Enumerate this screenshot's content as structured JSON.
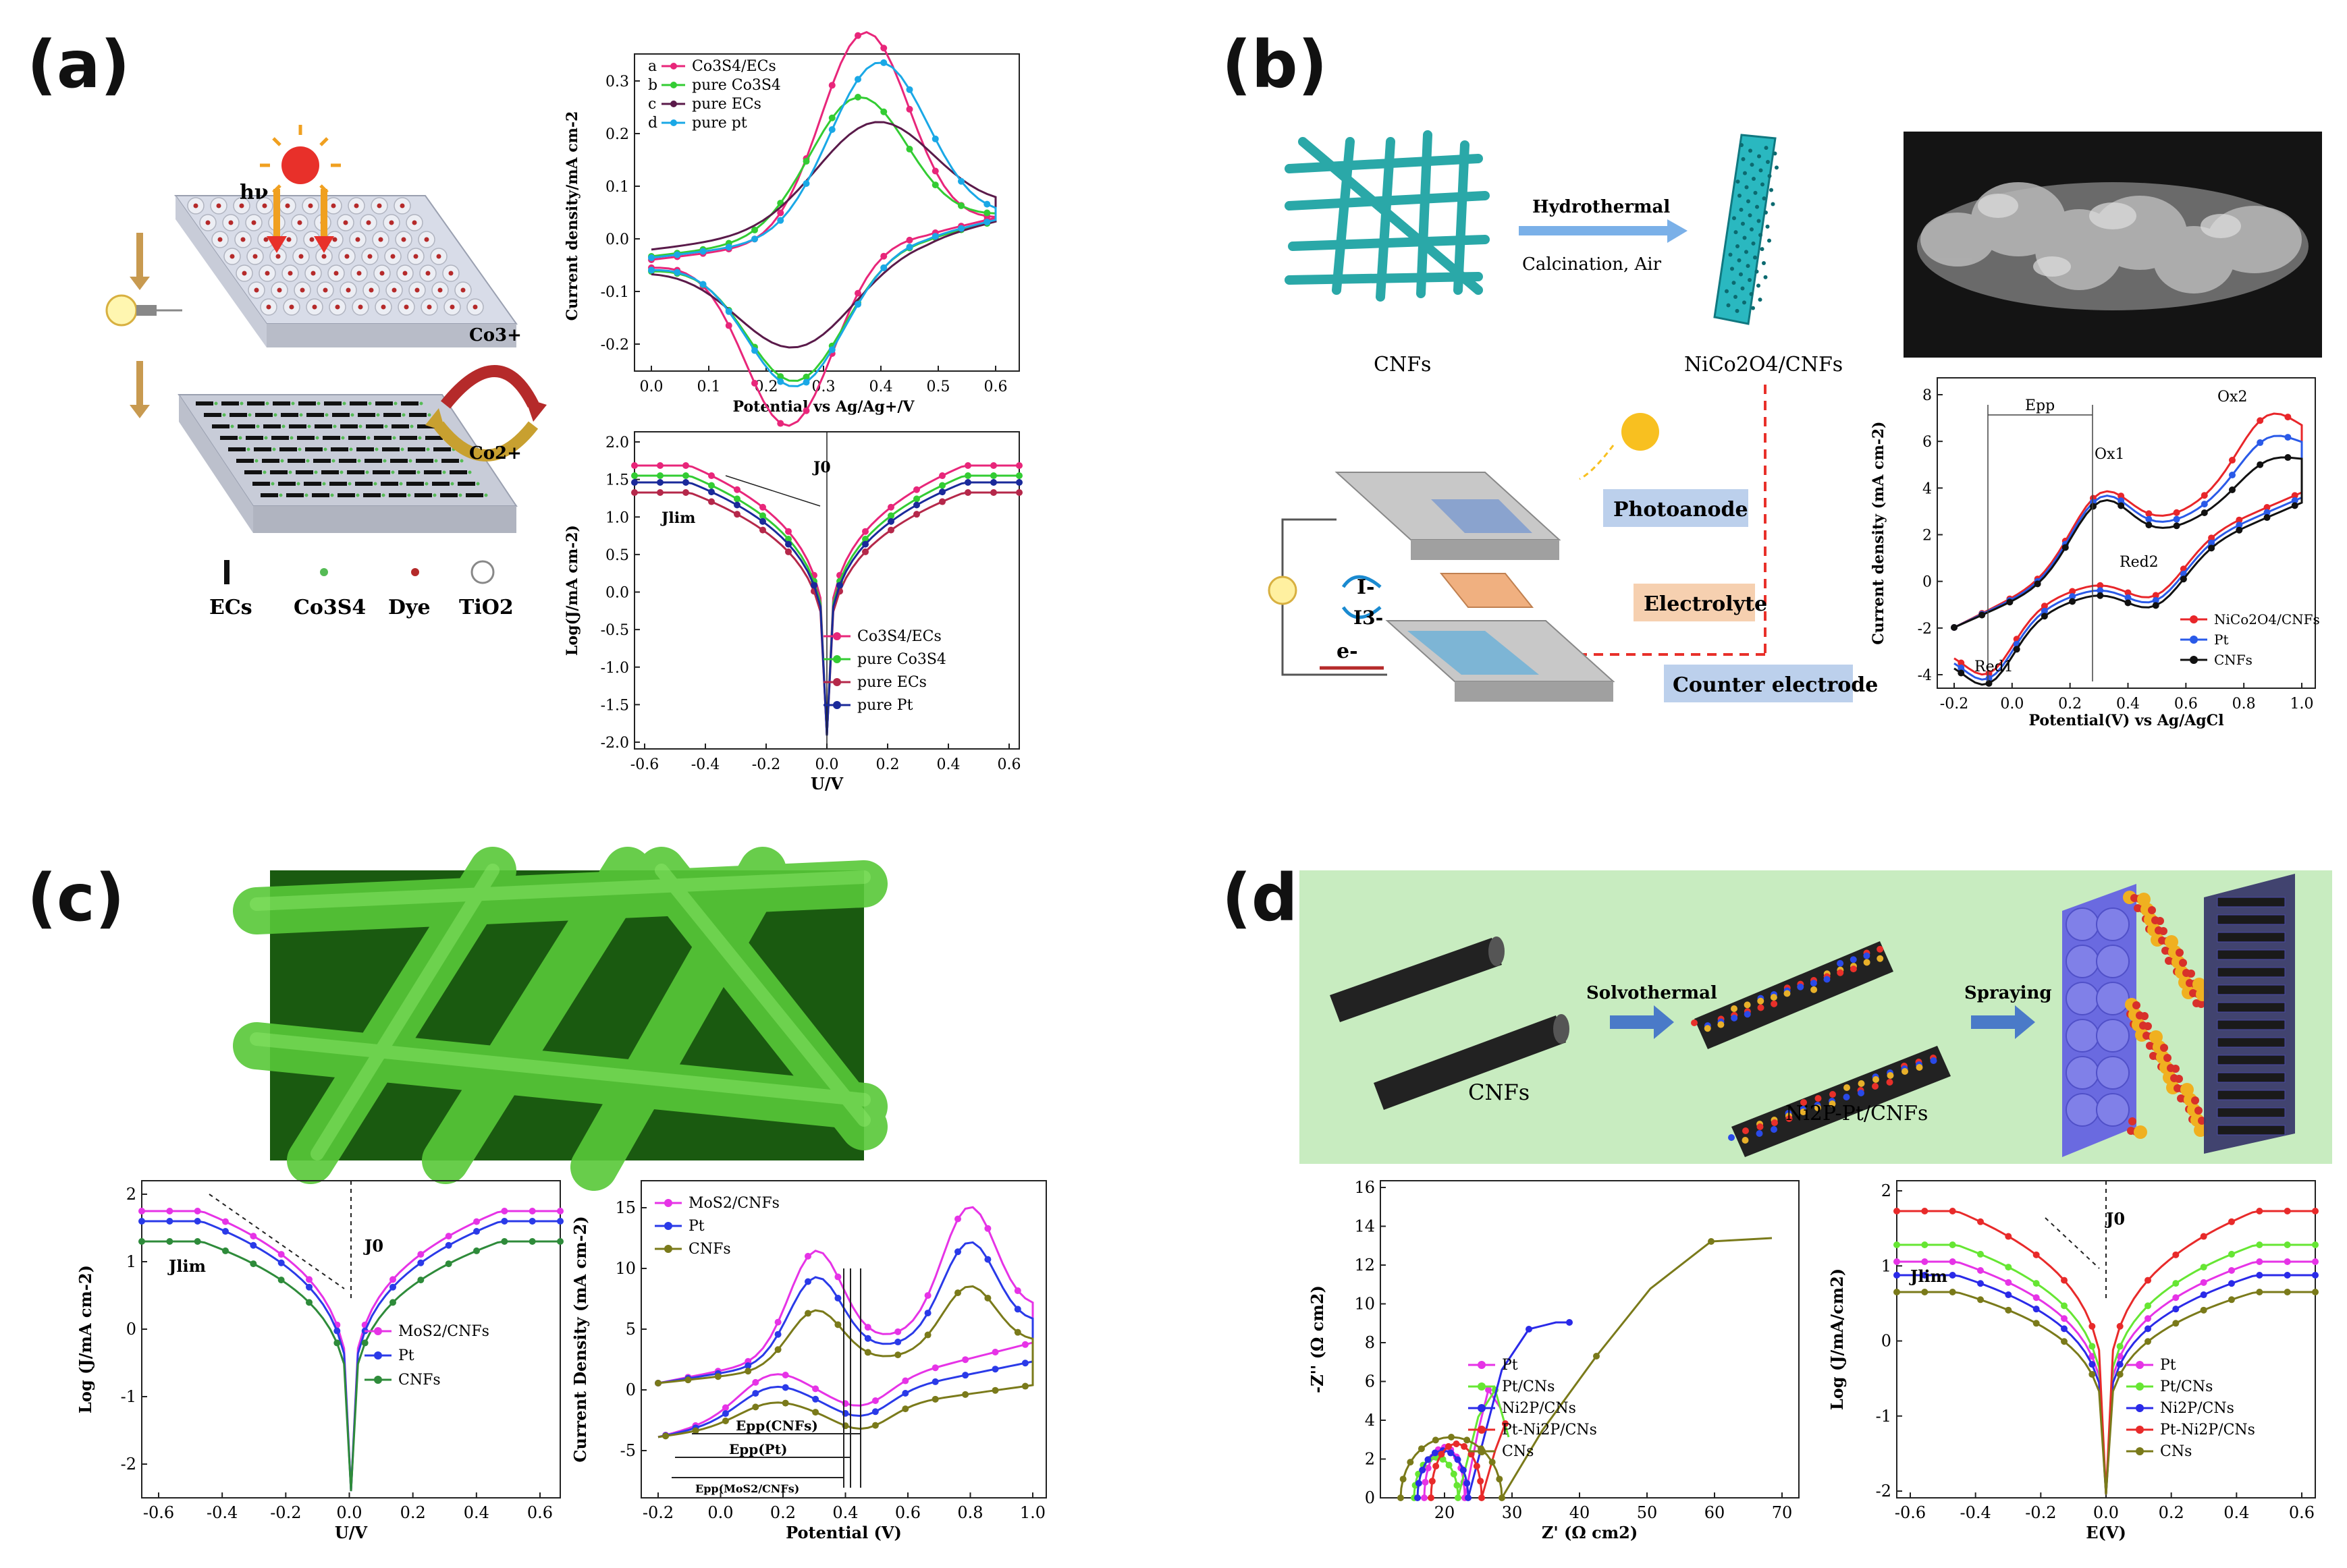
{
  "panels": {
    "a": {
      "label": "(a)",
      "schematic": {
        "hv": "hν",
        "co3": "Co3+",
        "co2": "Co2+",
        "legend": [
          "ECs",
          "Co3S4",
          "Dye",
          "TiO2"
        ]
      },
      "cv": {
        "xlabel": "Potential vs Ag/Ag+/V",
        "ylabel": "Current density/mA cm-2",
        "legend": [
          {
            "key": "a",
            "name": "Co3S4/ECs",
            "color": "#e8267a"
          },
          {
            "key": "b",
            "name": "pure Co3S4",
            "color": "#33cc33"
          },
          {
            "key": "c",
            "name": "pure ECs",
            "color": "#5a1a4a"
          },
          {
            "key": "d",
            "name": "pure pt",
            "color": "#1aa8e6"
          }
        ],
        "xticks": [
          "0.0",
          "0.1",
          "0.2",
          "0.3",
          "0.4",
          "0.5",
          "0.6"
        ],
        "yticks": [
          "0.3",
          "0.2",
          "0.1",
          "0.0",
          "-0.1",
          "-0.2"
        ]
      },
      "tafel": {
        "xlabel": "U/V",
        "ylabel": "Log(J/mA cm-2)",
        "j0": "J0",
        "jlim": "Jlim",
        "legend": [
          {
            "name": "Co3S4/ECs",
            "color": "#e8267a"
          },
          {
            "name": "pure Co3S4",
            "color": "#33cc33"
          },
          {
            "name": "pure ECs",
            "color": "#b5284a"
          },
          {
            "name": "pure Pt",
            "color": "#1a2a9a"
          }
        ],
        "xticks": [
          "-0.6",
          "-0.4",
          "-0.2",
          "0.0",
          "0.2",
          "0.4",
          "0.6"
        ],
        "yticks": [
          "2.0",
          "1.5",
          "1.0",
          "0.5",
          "0.0",
          "-0.5",
          "-1.0",
          "-1.5",
          "-2.0"
        ]
      }
    },
    "b": {
      "label": "(b)",
      "schematic": {
        "cnfs": "CNFs",
        "step1": "Hydrothermal",
        "step2": "Calcination, Air",
        "product": "NiCo2O4/CNFs",
        "photoanode": "Photoanode",
        "electrolyte": "Electrolyte",
        "counter": "Counter electrode",
        "iminus": "I-",
        "i3": "I3-",
        "e": "e-"
      },
      "cv": {
        "xlabel": "Potential(V) vs Ag/AgCl",
        "ylabel": "Current density (mA cm-2)",
        "epp": "Epp",
        "peaks": [
          "Ox1",
          "Ox2",
          "Red1",
          "Red2"
        ],
        "legend": [
          {
            "name": "NiCo2O4/CNFs",
            "color": "#e8262a"
          },
          {
            "name": "Pt",
            "color": "#2a5ae8"
          },
          {
            "name": "CNFs",
            "color": "#111111"
          }
        ],
        "xticks": [
          "-0.2",
          "0.0",
          "0.2",
          "0.4",
          "0.6",
          "0.8",
          "1.0"
        ],
        "yticks": [
          "8",
          "6",
          "4",
          "2",
          "0",
          "-2",
          "-4"
        ]
      }
    },
    "c": {
      "label": "(c)",
      "tafel": {
        "xlabel": "U/V",
        "ylabel": "Log (J/mA cm-2)",
        "j0": "J0",
        "jlim": "Jlim",
        "legend": [
          {
            "name": "MoS2/CNFs",
            "color": "#e633e6"
          },
          {
            "name": "Pt",
            "color": "#2a3ae8"
          },
          {
            "name": "CNFs",
            "color": "#2e8b3a"
          }
        ],
        "xticks": [
          "-0.6",
          "-0.4",
          "-0.2",
          "0.0",
          "0.2",
          "0.4",
          "0.6"
        ],
        "yticks": [
          "2",
          "1",
          "0",
          "-1",
          "-2"
        ]
      },
      "cv": {
        "xlabel": "Potential (V)",
        "ylabel": "Current Density (mA cm-2)",
        "epp": [
          "Epp(CNFs)",
          "Epp(Pt)",
          "Epp(MoS2/CNFs)"
        ],
        "legend": [
          {
            "name": "MoS2/CNFs",
            "color": "#e633e6"
          },
          {
            "name": "Pt",
            "color": "#2a3ae8"
          },
          {
            "name": "CNFs",
            "color": "#7a7a1a"
          }
        ],
        "xticks": [
          "-0.2",
          "0.0",
          "0.2",
          "0.4",
          "0.6",
          "0.8",
          "1.0"
        ],
        "yticks": [
          "15",
          "10",
          "5",
          "0",
          "-5"
        ]
      }
    },
    "d": {
      "label": "(d)",
      "schematic": {
        "cnfs": "CNFs",
        "step1": "Solvothermal",
        "product": "Ni2P-Pt/CNFs",
        "step2": "Spraying"
      },
      "eis": {
        "xlabel": "Z' (Ω cm2)",
        "ylabel": "-Z'' (Ω cm2)",
        "legend": [
          {
            "name": "Pt",
            "color": "#e633e6"
          },
          {
            "name": "Pt/CNs",
            "color": "#66e633"
          },
          {
            "name": "Ni2P/CNs",
            "color": "#2a2ae8"
          },
          {
            "name": "Pt-Ni2P/CNs",
            "color": "#e82a2a"
          },
          {
            "name": "CNs",
            "color": "#7a7a1a"
          }
        ],
        "xticks": [
          "20",
          "30",
          "40",
          "50",
          "60",
          "70"
        ],
        "yticks": [
          "16",
          "14",
          "12",
          "10",
          "8",
          "6",
          "4",
          "2",
          "0"
        ]
      },
      "tafel": {
        "xlabel": "E(V)",
        "ylabel": "Log (J/mA/cm2)",
        "j0": "J0",
        "jlim": "Jlim",
        "legend": [
          {
            "name": "Pt",
            "color": "#e633e6"
          },
          {
            "name": "Pt/CNs",
            "color": "#66e633"
          },
          {
            "name": "Ni2P/CNs",
            "color": "#2a2ae8"
          },
          {
            "name": "Pt-Ni2P/CNs",
            "color": "#e82a2a"
          },
          {
            "name": "CNs",
            "color": "#7a7a1a"
          }
        ],
        "xticks": [
          "-0.6",
          "-0.4",
          "-0.2",
          "0.0",
          "0.2",
          "0.4",
          "0.6"
        ],
        "yticks": [
          "2",
          "1",
          "0",
          "-1",
          "-2"
        ]
      }
    }
  }
}
